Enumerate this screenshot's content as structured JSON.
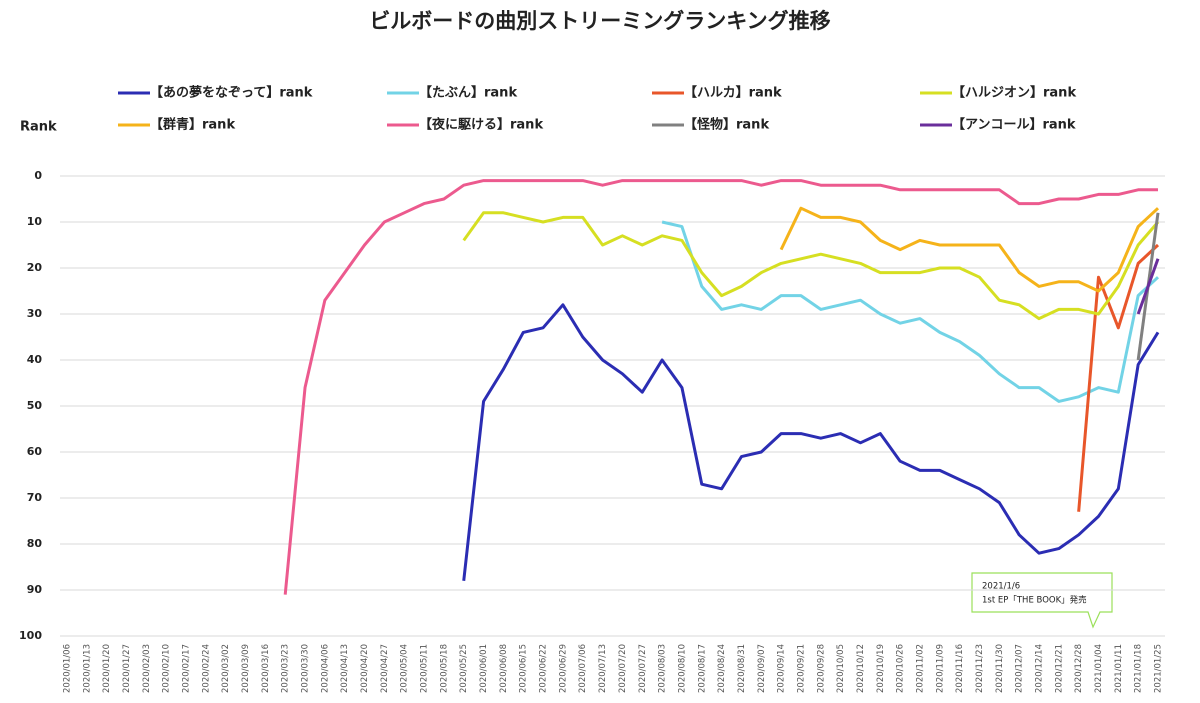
{
  "chart_data": {
    "type": "line",
    "title": "ビルボードの曲別ストリーミングランキング推移",
    "y_label": "Rank",
    "categories": [
      "2020/01/06",
      "2020/01/13",
      "2020/01/20",
      "2020/01/27",
      "2020/02/03",
      "2020/02/10",
      "2020/02/17",
      "2020/02/24",
      "2020/03/02",
      "2020/03/09",
      "2020/03/16",
      "2020/03/23",
      "2020/03/30",
      "2020/04/06",
      "2020/04/13",
      "2020/04/20",
      "2020/04/27",
      "2020/05/04",
      "2020/05/11",
      "2020/05/18",
      "2020/05/25",
      "2020/06/01",
      "2020/06/08",
      "2020/06/15",
      "2020/06/22",
      "2020/06/29",
      "2020/07/06",
      "2020/07/13",
      "2020/07/20",
      "2020/07/27",
      "2020/08/03",
      "2020/08/10",
      "2020/08/17",
      "2020/08/24",
      "2020/08/31",
      "2020/09/07",
      "2020/09/14",
      "2020/09/21",
      "2020/09/28",
      "2020/10/05",
      "2020/10/12",
      "2020/10/19",
      "2020/10/26",
      "2020/11/02",
      "2020/11/09",
      "2020/11/16",
      "2020/11/23",
      "2020/11/30",
      "2020/12/07",
      "2020/12/14",
      "2020/12/21",
      "2020/12/28",
      "2021/01/04",
      "2021/01/11",
      "2021/01/18",
      "2021/01/25"
    ],
    "series": [
      {
        "name": "【あの夢をなぞって】rank",
        "color": "#2b2db3",
        "values": [
          null,
          null,
          null,
          null,
          null,
          null,
          null,
          null,
          null,
          null,
          null,
          null,
          null,
          null,
          null,
          null,
          null,
          null,
          null,
          null,
          88,
          49,
          42,
          34,
          33,
          28,
          35,
          40,
          43,
          47,
          40,
          46,
          67,
          68,
          61,
          60,
          56,
          56,
          57,
          56,
          58,
          56,
          62,
          64,
          64,
          66,
          68,
          71,
          78,
          82,
          81,
          78,
          74,
          68,
          41,
          34
        ]
      },
      {
        "name": "【たぶん】rank",
        "color": "#72d3e6",
        "values": [
          null,
          null,
          null,
          null,
          null,
          null,
          null,
          null,
          null,
          null,
          null,
          null,
          null,
          null,
          null,
          null,
          null,
          null,
          null,
          null,
          null,
          null,
          null,
          null,
          null,
          null,
          null,
          null,
          null,
          null,
          10,
          11,
          24,
          29,
          28,
          29,
          26,
          26,
          29,
          28,
          27,
          30,
          32,
          31,
          34,
          36,
          39,
          43,
          46,
          46,
          49,
          48,
          46,
          47,
          26,
          22
        ]
      },
      {
        "name": "【ハルカ】rank",
        "color": "#e8562a",
        "values": [
          null,
          null,
          null,
          null,
          null,
          null,
          null,
          null,
          null,
          null,
          null,
          null,
          null,
          null,
          null,
          null,
          null,
          null,
          null,
          null,
          null,
          null,
          null,
          null,
          null,
          null,
          null,
          null,
          null,
          null,
          null,
          null,
          null,
          null,
          null,
          null,
          null,
          null,
          null,
          null,
          null,
          null,
          null,
          null,
          null,
          null,
          null,
          null,
          null,
          null,
          null,
          73,
          22,
          33,
          19,
          15
        ]
      },
      {
        "name": "【ハルジオン】rank",
        "color": "#d6df22",
        "values": [
          null,
          null,
          null,
          null,
          null,
          null,
          null,
          null,
          null,
          null,
          null,
          null,
          null,
          null,
          null,
          null,
          null,
          null,
          null,
          null,
          14,
          8,
          8,
          9,
          10,
          9,
          9,
          15,
          13,
          15,
          13,
          14,
          21,
          26,
          24,
          21,
          19,
          18,
          17,
          18,
          19,
          21,
          21,
          21,
          20,
          20,
          22,
          27,
          28,
          31,
          29,
          29,
          30,
          24,
          15,
          10
        ]
      },
      {
        "name": "【群青】rank",
        "color": "#f5b31a",
        "values": [
          null,
          null,
          null,
          null,
          null,
          null,
          null,
          null,
          null,
          null,
          null,
          null,
          null,
          null,
          null,
          null,
          null,
          null,
          null,
          null,
          null,
          null,
          null,
          null,
          null,
          null,
          null,
          null,
          null,
          null,
          null,
          null,
          null,
          null,
          null,
          null,
          16,
          7,
          9,
          9,
          10,
          14,
          16,
          14,
          15,
          15,
          15,
          15,
          21,
          24,
          23,
          23,
          25,
          21,
          11,
          7
        ]
      },
      {
        "name": "【夜に駆ける】rank",
        "color": "#ec5a8e",
        "values": [
          null,
          null,
          null,
          null,
          null,
          null,
          null,
          null,
          null,
          null,
          null,
          91,
          46,
          27,
          21,
          15,
          10,
          8,
          6,
          5,
          2,
          1,
          1,
          1,
          1,
          1,
          1,
          2,
          1,
          1,
          1,
          1,
          1,
          1,
          1,
          2,
          1,
          1,
          2,
          2,
          2,
          2,
          3,
          3,
          3,
          3,
          3,
          3,
          6,
          6,
          5,
          5,
          4,
          4,
          3,
          3
        ]
      },
      {
        "name": "【怪物】rank",
        "color": "#808080",
        "values": [
          null,
          null,
          null,
          null,
          null,
          null,
          null,
          null,
          null,
          null,
          null,
          null,
          null,
          null,
          null,
          null,
          null,
          null,
          null,
          null,
          null,
          null,
          null,
          null,
          null,
          null,
          null,
          null,
          null,
          null,
          null,
          null,
          null,
          null,
          null,
          null,
          null,
          null,
          null,
          null,
          null,
          null,
          null,
          null,
          null,
          null,
          null,
          null,
          null,
          null,
          null,
          null,
          null,
          null,
          40,
          8
        ]
      },
      {
        "name": "【アンコール】rank",
        "color": "#6a2e9b",
        "values": [
          null,
          null,
          null,
          null,
          null,
          null,
          null,
          null,
          null,
          null,
          null,
          null,
          null,
          null,
          null,
          null,
          null,
          null,
          null,
          null,
          null,
          null,
          null,
          null,
          null,
          null,
          null,
          null,
          null,
          null,
          null,
          null,
          null,
          null,
          null,
          null,
          null,
          null,
          null,
          null,
          null,
          null,
          null,
          null,
          null,
          null,
          null,
          null,
          null,
          null,
          null,
          null,
          null,
          null,
          30,
          18
        ]
      }
    ],
    "ylim": [
      0,
      100
    ],
    "yticks": [
      0,
      10,
      20,
      30,
      40,
      50,
      60,
      70,
      80,
      90,
      100
    ],
    "invert_y": true,
    "grid": true,
    "annotation": [
      "2021/1/6",
      "1st EP「THE BOOK」発売"
    ]
  }
}
